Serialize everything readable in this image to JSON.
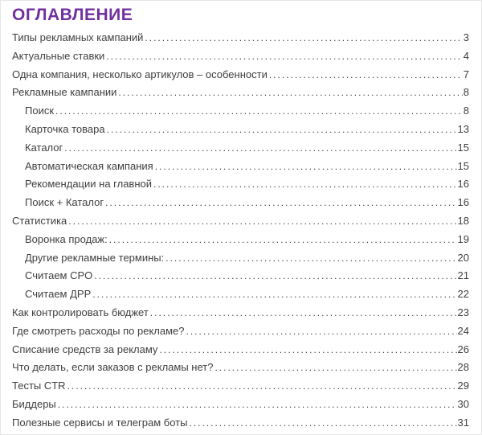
{
  "title": "ОГЛАВЛЕНИЕ",
  "colors": {
    "accent": "#7030A0",
    "text": "#3F3F3F"
  },
  "toc": {
    "items": [
      {
        "label": "Типы рекламных кампаний",
        "page": "3",
        "level": 0
      },
      {
        "label": "Актуальные ставки",
        "page": "4",
        "level": 0
      },
      {
        "label": "Одна компания, несколько артикулов – особенности",
        "page": "7",
        "level": 0
      },
      {
        "label": "Рекламные кампании",
        "page": "8",
        "level": 0
      },
      {
        "label": "Поиск",
        "page": "8",
        "level": 1
      },
      {
        "label": "Карточка товара",
        "page": "13",
        "level": 1
      },
      {
        "label": "Каталог",
        "page": "15",
        "level": 1
      },
      {
        "label": "Автоматическая кампания",
        "page": "15",
        "level": 1
      },
      {
        "label": "Рекомендации на главной",
        "page": "16",
        "level": 1
      },
      {
        "label": "Поиск + Каталог",
        "page": "16",
        "level": 1
      },
      {
        "label": "Статистика",
        "page": "18",
        "level": 0
      },
      {
        "label": "Воронка продаж:",
        "page": "19",
        "level": 1
      },
      {
        "label": "Другие рекламные термины:",
        "page": "20",
        "level": 1
      },
      {
        "label": "Считаем CPO",
        "page": "21",
        "level": 1
      },
      {
        "label": "Считаем ДРР",
        "page": "22",
        "level": 1
      },
      {
        "label": "Как контролировать бюджет",
        "page": "23",
        "level": 0
      },
      {
        "label": "Где смотреть расходы по рекламе?",
        "page": "24",
        "level": 0
      },
      {
        "label": "Списание средств за рекламу",
        "page": "26",
        "level": 0
      },
      {
        "label": "Что делать, если заказов с рекламы нет?",
        "page": "28",
        "level": 0
      },
      {
        "label": "Тесты CTR",
        "page": "29",
        "level": 0
      },
      {
        "label": "Биддеры",
        "page": "30",
        "level": 0
      },
      {
        "label": "Полезные сервисы и телеграм боты",
        "page": "31",
        "level": 0
      }
    ]
  }
}
